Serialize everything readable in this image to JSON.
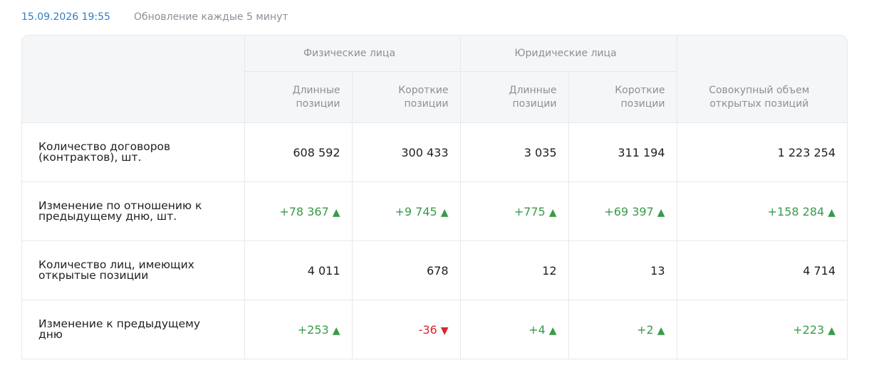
{
  "header": {
    "timestamp": "15.09.2026 19:55",
    "update_note": "Обновление каждые 5 минут"
  },
  "table": {
    "groups": [
      "Физические лица",
      "Юридические лица"
    ],
    "columns": [
      "Длинные позиции",
      "Короткие позиции",
      "Длинные позиции",
      "Короткие позиции",
      "Совокупный объем открытых позиций"
    ],
    "rows": [
      [
        "Количество договоров (контрактов), шт.",
        "608 592",
        "300 433",
        "3 035",
        "311 194",
        "1 223 254"
      ],
      [
        "Изменение по отношению к предыдущему дню, шт.",
        "+78 367",
        "+9 745",
        "+775",
        "+69 397",
        "+158 284"
      ],
      [
        "Количество лиц, имеющих открытые позиции",
        "4 011",
        "678",
        "12",
        "13",
        "4 714"
      ],
      [
        "Изменение к предыдущему дню",
        "+253",
        "-36",
        "+4",
        "+2",
        "+223"
      ]
    ]
  }
}
